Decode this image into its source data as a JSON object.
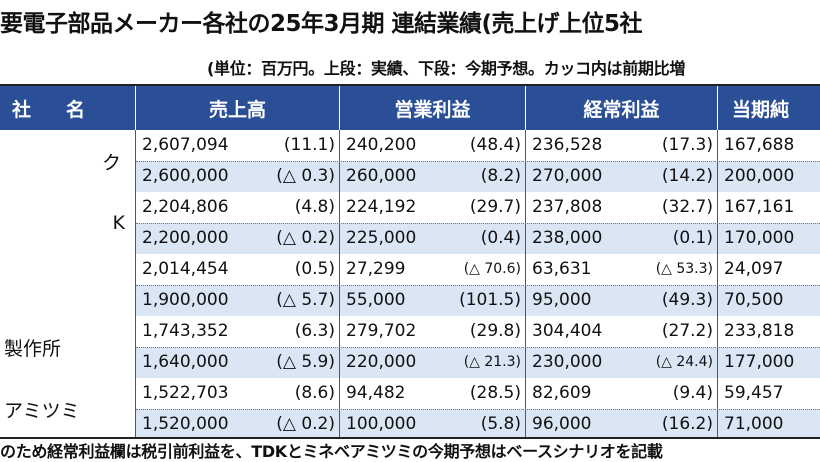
{
  "title": "要電子部品メーカー各社の25年3月期  連結業績(売上げ上位5社",
  "unit_note": "(単位：百万円。上段：実績、下段：今期予想。カッコ内は前期比増",
  "headers": {
    "company_1": "社",
    "company_2": "名",
    "sales": "売上高",
    "operating": "営業利益",
    "ordinary": "経常利益",
    "net": "当期純"
  },
  "companies": [
    {
      "name": "ク",
      "actual": {
        "sales": "2,607,094",
        "sales_pct": "(11.1)",
        "op": "240,200",
        "op_pct": "(48.4)",
        "ord": "236,528",
        "ord_pct": "(17.3)",
        "net": "167,688"
      },
      "forecast": {
        "sales": "2,600,000",
        "sales_pct": "(△ 0.3)",
        "op": "260,000",
        "op_pct": "(8.2)",
        "ord": "270,000",
        "ord_pct": "(14.2)",
        "net": "200,000"
      }
    },
    {
      "name": "K",
      "actual": {
        "sales": "2,204,806",
        "sales_pct": "(4.8)",
        "op": "224,192",
        "op_pct": "(29.7)",
        "ord": "237,808",
        "ord_pct": "(32.7)",
        "net": "167,161"
      },
      "forecast": {
        "sales": "2,200,000",
        "sales_pct": "(△ 0.2)",
        "op": "225,000",
        "op_pct": "(0.4)",
        "ord": "238,000",
        "ord_pct": "(0.1)",
        "net": "170,000"
      }
    },
    {
      "name": "",
      "actual": {
        "sales": "2,014,454",
        "sales_pct": "(0.5)",
        "op": "27,299",
        "op_pct": "(△ 70.6)",
        "ord": "63,631",
        "ord_pct": "(△ 53.3)",
        "net": "24,097"
      },
      "forecast": {
        "sales": "1,900,000",
        "sales_pct": "(△ 5.7)",
        "op": "55,000",
        "op_pct": "(101.5)",
        "ord": "95,000",
        "ord_pct": "(49.3)",
        "net": "70,500"
      }
    },
    {
      "name": "製作所",
      "actual": {
        "sales": "1,743,352",
        "sales_pct": "(6.3)",
        "op": "279,702",
        "op_pct": "(29.8)",
        "ord": "304,404",
        "ord_pct": "(27.2)",
        "net": "233,818"
      },
      "forecast": {
        "sales": "1,640,000",
        "sales_pct": "(△ 5.9)",
        "op": "220,000",
        "op_pct": "(△ 21.3)",
        "ord": "230,000",
        "ord_pct": "(△ 24.4)",
        "net": "177,000"
      }
    },
    {
      "name": "アミツミ",
      "actual": {
        "sales": "1,522,703",
        "sales_pct": "(8.6)",
        "op": "94,482",
        "op_pct": "(28.5)",
        "ord": "82,609",
        "ord_pct": "(9.4)",
        "net": "59,457"
      },
      "forecast": {
        "sales": "1,520,000",
        "sales_pct": "(△ 0.2)",
        "op": "100,000",
        "op_pct": "(5.8)",
        "ord": "96,000",
        "ord_pct": "(16.2)",
        "net": "71,000"
      }
    }
  ],
  "footnote": "のため経常利益欄は税引前利益を、TDKとミネベアミツミの今期予想はベースシナリオを記載",
  "colors": {
    "header_bg": "#2a4f97",
    "forecast_row_bg": "#dbe6f5",
    "header_text": "#ffffff"
  }
}
